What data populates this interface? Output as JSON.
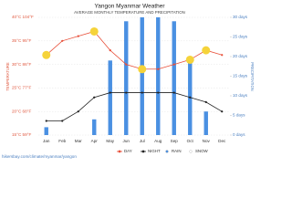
{
  "chart_data": {
    "type": "combo",
    "title": "Yangon Myanmar Weather",
    "subtitle": "AVERAGE MONTHLY TEMPERATURE AND PRECIPITATION",
    "y_label": "TEMPERATURE",
    "y2_label": "PRECIPITATION",
    "categories": [
      "Jan",
      "Feb",
      "Mar",
      "Apr",
      "May",
      "Jun",
      "Jul",
      "Aug",
      "Sep",
      "Oct",
      "Nov",
      "Dec"
    ],
    "ylim": [
      15,
      40
    ],
    "yticks": [
      {
        "value": 15,
        "label": "15°C 59°F"
      },
      {
        "value": 20,
        "label": "20°C 68°F"
      },
      {
        "value": 25,
        "label": "25°C 77°F"
      },
      {
        "value": 30,
        "label": "30°C 86°F"
      },
      {
        "value": 35,
        "label": "35°C 95°F"
      },
      {
        "value": 40,
        "label": "40°C 104°F"
      }
    ],
    "y2lim": [
      0,
      30
    ],
    "y2ticks": [
      {
        "value": 0,
        "label": "0 days"
      },
      {
        "value": 5,
        "label": "5 days"
      },
      {
        "value": 10,
        "label": "10 days"
      },
      {
        "value": 15,
        "label": "15 days"
      },
      {
        "value": 20,
        "label": "20 days"
      },
      {
        "value": 25,
        "label": "25 days"
      },
      {
        "value": 30,
        "label": "30 days"
      }
    ],
    "grid": true,
    "series": [
      {
        "name": "DAY",
        "type": "line",
        "color": "#e8503a",
        "values": [
          32,
          35,
          36,
          37,
          33,
          30,
          29,
          29,
          30,
          31,
          33,
          32
        ]
      },
      {
        "name": "NIGHT",
        "type": "line",
        "color": "#222222",
        "values": [
          18,
          18,
          20,
          23,
          24,
          24,
          24,
          24,
          24,
          23,
          22,
          20
        ]
      },
      {
        "name": "RAIN",
        "type": "bar",
        "axis": "y2",
        "color": "#4a90e2",
        "values": [
          2,
          0,
          0,
          4,
          19,
          29,
          30,
          30,
          29,
          20,
          6,
          0
        ]
      },
      {
        "name": "SNOW",
        "type": "bar",
        "axis": "y2",
        "color": "#ffffff",
        "values": [
          0,
          0,
          0,
          0,
          0,
          0,
          0,
          0,
          0,
          0,
          0,
          0
        ]
      }
    ],
    "footer": "hikersbay.com/climate/myanmar/yangon"
  }
}
